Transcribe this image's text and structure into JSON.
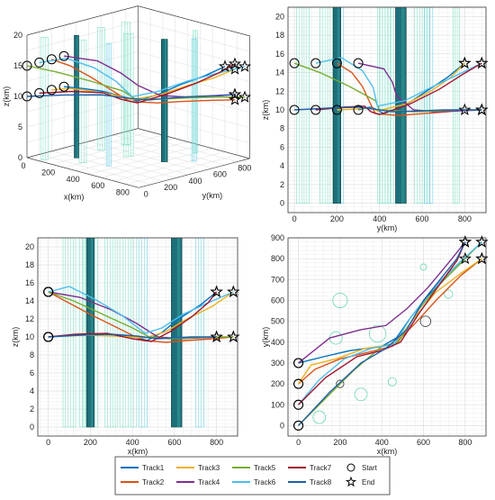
{
  "colors": {
    "track1": "#0072BD",
    "track2": "#D95319",
    "track3": "#EDB120",
    "track4": "#7E2F8E",
    "track5": "#77AC30",
    "track6": "#4DBEEE",
    "track7": "#A2142F",
    "track8": "#1F5FA8",
    "pillar_light": "#7FE0C8",
    "pillar_cyan": "#6FD0E8",
    "pillar_dark": "#1F6F7A",
    "obstacle_circle": "#6BD6B0"
  },
  "legend": {
    "items": [
      {
        "label": "Track1",
        "color": "#0072BD"
      },
      {
        "label": "Track2",
        "color": "#D95319"
      },
      {
        "label": "Track3",
        "color": "#EDB120"
      },
      {
        "label": "Track4",
        "color": "#7E2F8E"
      },
      {
        "label": "Track5",
        "color": "#77AC30"
      },
      {
        "label": "Track6",
        "color": "#4DBEEE"
      },
      {
        "label": "Track7",
        "color": "#A2142F"
      },
      {
        "label": "Track8",
        "color": "#1F5FA8"
      }
    ],
    "start_label": "Start",
    "end_label": "End"
  },
  "chart_data": [
    {
      "type": "line",
      "view": "3d",
      "xlabel": "x(km)",
      "ylabel": "y(km)",
      "zlabel": "z(km)",
      "xlim": [
        0,
        900
      ],
      "ylim": [
        0,
        900
      ],
      "zlim": [
        0,
        20
      ],
      "xticks": [
        0,
        200,
        400,
        600,
        800
      ],
      "yticks": [
        0,
        200,
        400,
        600,
        800
      ],
      "zticks": [
        0,
        5,
        10,
        15,
        20
      ],
      "grid": true
    },
    {
      "type": "line",
      "view": "y-z",
      "xlabel": "y(km)",
      "ylabel": "z(km)",
      "xlim": [
        -30,
        900
      ],
      "ylim": [
        -1,
        21
      ],
      "xticks": [
        0,
        200,
        400,
        600,
        800
      ],
      "yticks": [
        0,
        2,
        4,
        6,
        8,
        10,
        12,
        14,
        16,
        18,
        20
      ],
      "grid": true
    },
    {
      "type": "line",
      "view": "x-z",
      "xlabel": "x(km)",
      "ylabel": "z(km)",
      "xlim": [
        -50,
        900
      ],
      "ylim": [
        -1,
        21
      ],
      "xticks": [
        0,
        200,
        400,
        600,
        800
      ],
      "yticks": [
        0,
        2,
        4,
        6,
        8,
        10,
        12,
        14,
        16,
        18,
        20
      ],
      "grid": true
    },
    {
      "type": "line",
      "view": "x-y",
      "xlabel": "x(km)",
      "ylabel": "y(km)",
      "xlim": [
        -50,
        900
      ],
      "ylim": [
        -50,
        900
      ],
      "xticks": [
        0,
        200,
        400,
        600,
        800
      ],
      "yticks": [
        0,
        100,
        200,
        300,
        400,
        500,
        600,
        700,
        800,
        900
      ],
      "grid": true
    }
  ],
  "tracks": [
    {
      "name": "Track1",
      "start": [
        0,
        300,
        10
      ],
      "end": [
        800,
        800,
        15
      ],
      "xy": [
        [
          0,
          300
        ],
        [
          120,
          330
        ],
        [
          250,
          360
        ],
        [
          400,
          380
        ],
        [
          470,
          420
        ],
        [
          540,
          520
        ],
        [
          620,
          620
        ],
        [
          720,
          720
        ],
        [
          800,
          800
        ]
      ],
      "z": [
        10,
        10.2,
        10.3,
        10.1,
        9.6,
        10.5,
        12,
        13.5,
        15
      ]
    },
    {
      "name": "Track2",
      "start": [
        0,
        200,
        15
      ],
      "end": [
        880,
        800,
        10
      ],
      "xy": [
        [
          0,
          200
        ],
        [
          80,
          270
        ],
        [
          200,
          320
        ],
        [
          330,
          350
        ],
        [
          450,
          380
        ],
        [
          560,
          490
        ],
        [
          660,
          600
        ],
        [
          780,
          720
        ],
        [
          880,
          800
        ]
      ],
      "z": [
        15,
        14,
        12.5,
        11,
        9.6,
        9.4,
        9.6,
        9.8,
        10
      ]
    },
    {
      "name": "Track3",
      "start": [
        0,
        200,
        10
      ],
      "end": [
        880,
        800,
        15
      ],
      "xy": [
        [
          0,
          200
        ],
        [
          60,
          290
        ],
        [
          180,
          320
        ],
        [
          320,
          370
        ],
        [
          460,
          390
        ],
        [
          560,
          520
        ],
        [
          660,
          640
        ],
        [
          780,
          730
        ],
        [
          880,
          800
        ]
      ],
      "z": [
        10,
        10.1,
        10.2,
        10.1,
        9.9,
        10.6,
        12,
        13.4,
        15
      ]
    },
    {
      "name": "Track4",
      "start": [
        0,
        300,
        15
      ],
      "end": [
        800,
        880,
        10
      ],
      "xy": [
        [
          0,
          300
        ],
        [
          150,
          420
        ],
        [
          300,
          460
        ],
        [
          420,
          480
        ],
        [
          520,
          560
        ],
        [
          620,
          660
        ],
        [
          720,
          780
        ],
        [
          800,
          880
        ]
      ],
      "z": [
        15,
        14.4,
        13,
        11.5,
        10,
        9.8,
        9.9,
        10
      ]
    },
    {
      "name": "Track5",
      "start": [
        0,
        0,
        15
      ],
      "end": [
        880,
        880,
        10
      ],
      "xy": [
        [
          0,
          0
        ],
        [
          120,
          120
        ],
        [
          260,
          260
        ],
        [
          400,
          380
        ],
        [
          480,
          400
        ],
        [
          580,
          560
        ],
        [
          680,
          680
        ],
        [
          780,
          780
        ],
        [
          880,
          880
        ]
      ],
      "z": [
        15,
        14,
        12.5,
        11,
        10,
        9.8,
        9.9,
        10,
        10
      ]
    },
    {
      "name": "Track6",
      "start": [
        0,
        100,
        15
      ],
      "end": [
        880,
        880,
        15
      ],
      "xy": [
        [
          0,
          100
        ],
        [
          100,
          220
        ],
        [
          220,
          320
        ],
        [
          350,
          370
        ],
        [
          460,
          390
        ],
        [
          540,
          520
        ],
        [
          640,
          650
        ],
        [
          760,
          770
        ],
        [
          880,
          880
        ]
      ],
      "z": [
        15,
        15.6,
        14.2,
        12.4,
        10.4,
        11,
        12.5,
        13.8,
        15
      ]
    },
    {
      "name": "Track7",
      "start": [
        0,
        100,
        10
      ],
      "end": [
        800,
        880,
        15
      ],
      "xy": [
        [
          0,
          100
        ],
        [
          130,
          230
        ],
        [
          280,
          330
        ],
        [
          400,
          360
        ],
        [
          490,
          400
        ],
        [
          580,
          540
        ],
        [
          680,
          680
        ],
        [
          760,
          790
        ],
        [
          800,
          880
        ]
      ],
      "z": [
        10,
        10.3,
        10.4,
        9.8,
        9.5,
        10.6,
        12.2,
        13.8,
        15
      ]
    },
    {
      "name": "Track8",
      "start": [
        0,
        0,
        10
      ],
      "end": [
        800,
        880,
        10
      ],
      "xy": [
        [
          0,
          0
        ],
        [
          150,
          160
        ],
        [
          300,
          300
        ],
        [
          420,
          370
        ],
        [
          520,
          460
        ],
        [
          600,
          600
        ],
        [
          680,
          700
        ],
        [
          760,
          800
        ],
        [
          800,
          880
        ]
      ],
      "z": [
        10,
        10.2,
        10.3,
        10.1,
        9.8,
        9.9,
        10,
        10,
        10
      ]
    }
  ],
  "obstacles": [
    {
      "x": 180,
      "y": 420,
      "r": 30,
      "style": "light"
    },
    {
      "x": 200,
      "y": 600,
      "r": 35,
      "style": "light"
    },
    {
      "x": 100,
      "y": 40,
      "r": 30,
      "style": "light"
    },
    {
      "x": 300,
      "y": 150,
      "r": 30,
      "style": "light"
    },
    {
      "x": 380,
      "y": 440,
      "r": 40,
      "style": "light"
    },
    {
      "x": 450,
      "y": 210,
      "r": 20,
      "style": "cyan"
    },
    {
      "x": 600,
      "y": 760,
      "r": 15,
      "style": "light"
    },
    {
      "x": 720,
      "y": 630,
      "r": 20,
      "style": "cyan"
    },
    {
      "x": 610,
      "y": 500,
      "r": 25,
      "style": "dark"
    },
    {
      "x": 200,
      "y": 200,
      "r": 18,
      "style": "dark"
    }
  ]
}
